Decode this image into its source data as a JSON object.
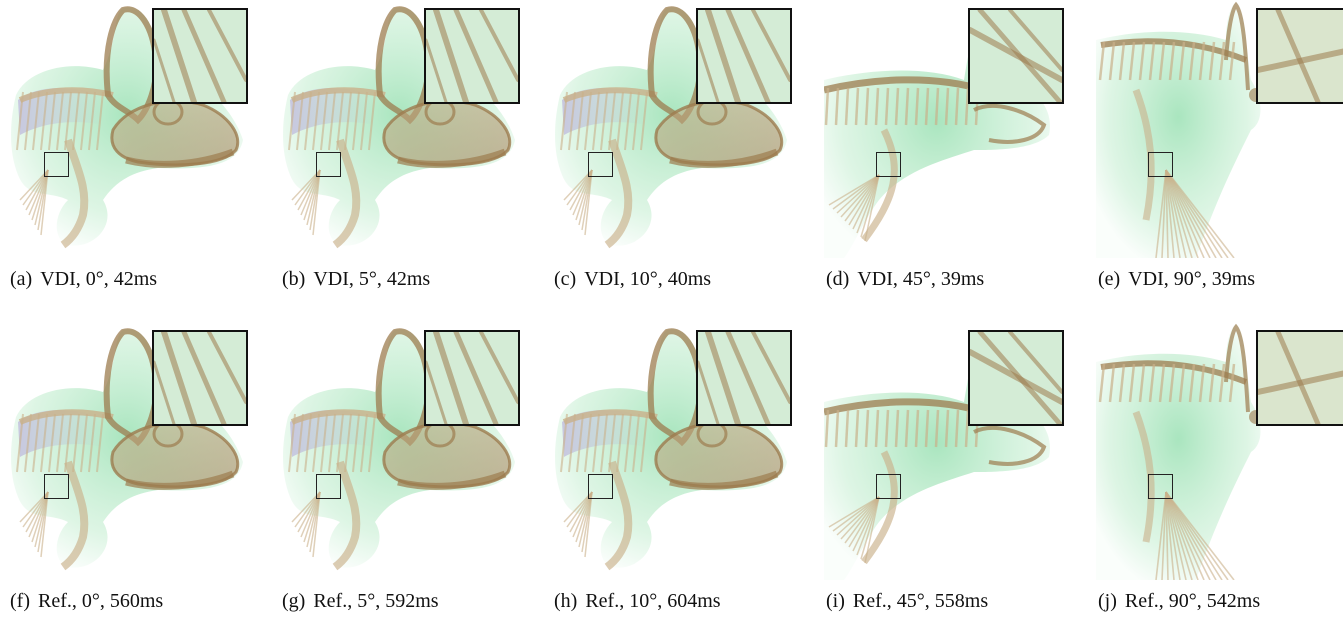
{
  "figure": {
    "panels": [
      {
        "tag": "(a)",
        "method": "VDI,",
        "angle": "0°,",
        "time": "42ms",
        "view": "front",
        "row": "vdi"
      },
      {
        "tag": "(b)",
        "method": "VDI,",
        "angle": "5°,",
        "time": "42ms",
        "view": "front",
        "row": "vdi"
      },
      {
        "tag": "(c)",
        "method": "VDI,",
        "angle": "10°,",
        "time": "40ms",
        "view": "front",
        "row": "vdi"
      },
      {
        "tag": "(d)",
        "method": "VDI,",
        "angle": "45°,",
        "time": "39ms",
        "view": "oblique",
        "row": "vdi"
      },
      {
        "tag": "(e)",
        "method": "VDI,",
        "angle": "90°,",
        "time": "39ms",
        "view": "side",
        "row": "vdi"
      },
      {
        "tag": "(f)",
        "method": "Ref.,",
        "angle": "0°,",
        "time": "560ms",
        "view": "front",
        "row": "ref"
      },
      {
        "tag": "(g)",
        "method": "Ref.,",
        "angle": "5°,",
        "time": "592ms",
        "view": "front",
        "row": "ref"
      },
      {
        "tag": "(h)",
        "method": "Ref.,",
        "angle": "10°,",
        "time": "604ms",
        "view": "front",
        "row": "ref"
      },
      {
        "tag": "(i)",
        "method": "Ref.,",
        "angle": "45°,",
        "time": "558ms",
        "view": "oblique",
        "row": "ref"
      },
      {
        "tag": "(j)",
        "method": "Ref.,",
        "angle": "90°,",
        "time": "542ms",
        "view": "side",
        "row": "ref"
      }
    ]
  },
  "colors": {
    "bone": "#9c7c4f",
    "bone_light": "#c9b08a",
    "tissue": "#9fe3b3",
    "tissue_deep": "#63d08a",
    "tissue_violet": "#b4a8d8",
    "frame": "#111111"
  }
}
